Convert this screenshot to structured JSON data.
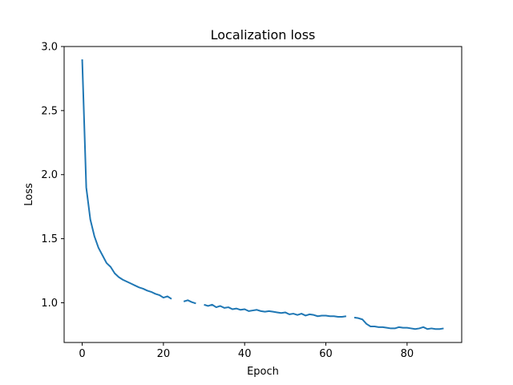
{
  "chart_data": {
    "type": "line",
    "title": "Localization loss",
    "xlabel": "Epoch",
    "ylabel": "Loss",
    "xlim": [
      -4.45,
      93.45
    ],
    "ylim": [
      0.69,
      3.0
    ],
    "xticks": [
      0,
      20,
      40,
      60,
      80
    ],
    "yticks": [
      1.0,
      1.5,
      2.0,
      2.5,
      3.0
    ],
    "xtick_labels": [
      "0",
      "20",
      "40",
      "60",
      "80"
    ],
    "ytick_labels": [
      "1.0",
      "1.5",
      "2.0",
      "2.5",
      "3.0"
    ],
    "grid": false,
    "line_color": "#1f77b4",
    "series": [
      {
        "x": [
          0,
          1,
          2,
          3,
          4,
          5,
          6,
          7,
          8,
          9,
          10,
          11,
          12,
          13,
          14,
          15,
          16,
          17,
          18,
          19,
          20,
          21,
          22,
          23,
          24,
          25,
          26,
          27,
          28,
          29,
          30,
          31,
          32,
          33,
          34,
          35,
          36,
          37,
          38,
          39,
          40,
          41,
          42,
          43,
          44,
          45,
          46,
          47,
          48,
          49,
          50,
          51,
          52,
          53,
          54,
          55,
          56,
          57,
          58,
          59,
          60,
          61,
          62,
          63,
          64,
          65,
          66,
          67,
          68,
          69,
          70,
          71,
          72,
          73,
          74,
          75,
          76,
          77,
          78,
          79,
          80,
          81,
          82,
          83,
          84,
          85,
          86,
          87,
          88,
          89
        ],
        "values": [
          2.9,
          1.9,
          1.65,
          1.52,
          1.43,
          1.37,
          1.31,
          1.28,
          1.23,
          1.2,
          1.18,
          1.165,
          1.15,
          1.135,
          1.12,
          1.11,
          1.095,
          1.085,
          1.07,
          1.06,
          1.04,
          1.05,
          1.03,
          null,
          null,
          1.01,
          1.02,
          1.005,
          0.995,
          null,
          0.985,
          0.975,
          0.985,
          0.965,
          0.975,
          0.96,
          0.965,
          0.95,
          0.955,
          0.945,
          0.95,
          0.935,
          0.94,
          0.945,
          0.935,
          0.93,
          0.935,
          0.93,
          0.925,
          0.92,
          0.925,
          0.91,
          0.915,
          0.905,
          0.915,
          0.9,
          0.91,
          0.905,
          0.895,
          0.9,
          0.9,
          0.895,
          0.895,
          0.89,
          0.89,
          0.895,
          null,
          0.885,
          0.88,
          0.87,
          0.835,
          0.815,
          0.815,
          0.81,
          0.81,
          0.805,
          0.8,
          0.8,
          0.81,
          0.805,
          0.805,
          0.8,
          0.795,
          0.8,
          0.81,
          0.795,
          0.8,
          0.795,
          0.795,
          0.8
        ]
      }
    ]
  }
}
